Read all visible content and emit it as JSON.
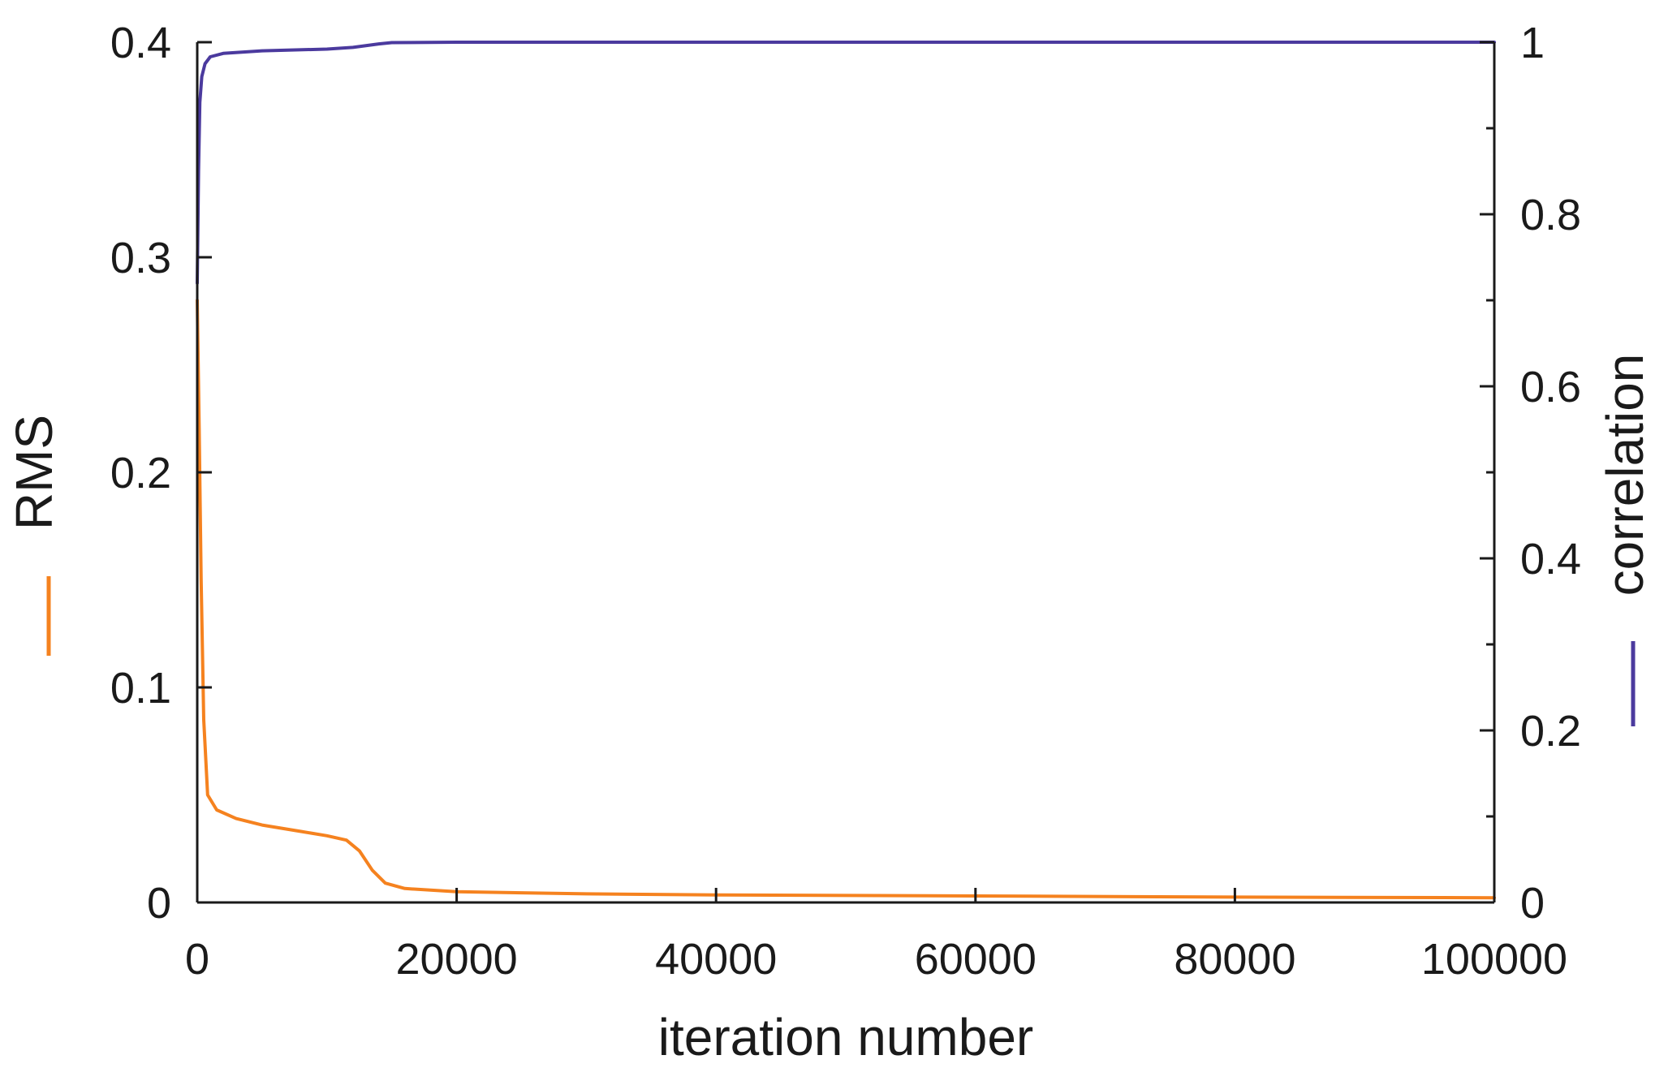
{
  "chart_data": {
    "type": "line",
    "title": "",
    "xlabel": "iteration number",
    "ylabel": "RMS",
    "y2label": "correlation",
    "xlim": [
      0,
      100000
    ],
    "ylim": [
      0,
      0.4
    ],
    "y2lim": [
      0,
      1
    ],
    "x_ticks": [
      "0",
      "20000",
      "40000",
      "60000",
      "80000",
      "100000"
    ],
    "y_ticks": [
      "0",
      "0.1",
      "0.2",
      "0.3",
      "0.4"
    ],
    "y2_ticks": [
      "0",
      "0.2",
      "0.4",
      "0.6",
      "0.8",
      "1"
    ],
    "grid": false,
    "legend": "none",
    "colors": {
      "rms": "#f5821f",
      "correlation": "#4b3a9e",
      "axis": "#1a1a1a"
    },
    "series": [
      {
        "axis": "left",
        "points": [
          [
            0,
            0.28
          ],
          [
            150,
            0.22
          ],
          [
            300,
            0.15
          ],
          [
            500,
            0.085
          ],
          [
            800,
            0.05
          ],
          [
            1500,
            0.043
          ],
          [
            3000,
            0.039
          ],
          [
            5000,
            0.036
          ],
          [
            8000,
            0.033
          ],
          [
            10000,
            0.031
          ],
          [
            11500,
            0.029
          ],
          [
            12500,
            0.024
          ],
          [
            13500,
            0.015
          ],
          [
            14500,
            0.009
          ],
          [
            16000,
            0.0065
          ],
          [
            20000,
            0.005
          ],
          [
            30000,
            0.004
          ],
          [
            40000,
            0.0035
          ],
          [
            60000,
            0.003
          ],
          [
            80000,
            0.0025
          ],
          [
            100000,
            0.0022
          ]
        ]
      },
      {
        "axis": "right",
        "points": [
          [
            0,
            0.72
          ],
          [
            100,
            0.85
          ],
          [
            200,
            0.93
          ],
          [
            350,
            0.96
          ],
          [
            600,
            0.975
          ],
          [
            1000,
            0.983
          ],
          [
            2000,
            0.987
          ],
          [
            5000,
            0.99
          ],
          [
            10000,
            0.992
          ],
          [
            12000,
            0.994
          ],
          [
            14000,
            0.998
          ],
          [
            15000,
            0.9995
          ],
          [
            20000,
            1.0
          ],
          [
            100000,
            1.0
          ]
        ]
      }
    ]
  }
}
